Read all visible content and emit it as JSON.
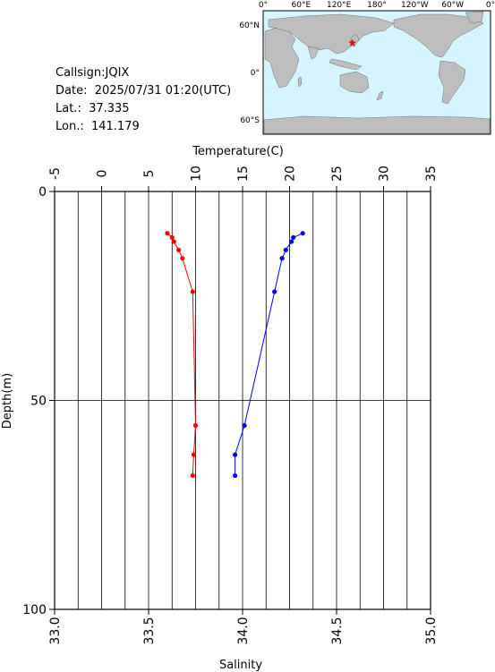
{
  "info": {
    "callsign": "Callsign:JQIX",
    "date": "Date:  2025/07/31 01:20(UTC)",
    "lat": "Lat.:  37.335",
    "lon": "Lon.:  141.179"
  },
  "map": {
    "top_lon_labels": [
      "0°",
      "60°E",
      "120°E",
      "180°",
      "120°W",
      "60°W",
      "0°"
    ],
    "left_lat_labels": [
      "60°N",
      "0°",
      "60°S"
    ],
    "ocean_color": "#d4f4ff",
    "land_color": "#bebebe",
    "marker_color": "#ff0000",
    "marker_lat": 37.335,
    "marker_lon": 141.179
  },
  "chart_data": {
    "type": "line",
    "title": "",
    "ylabel": "Depth(m)",
    "ylim": [
      0,
      100
    ],
    "y_inverted": true,
    "y_ticks": [
      0,
      50,
      100
    ],
    "x_top": {
      "label": "Temperature(C)",
      "lim": [
        -5,
        35
      ],
      "ticks": [
        -5,
        0,
        5,
        10,
        15,
        20,
        25,
        30,
        35
      ]
    },
    "x_bottom": {
      "label": "Salinity",
      "lim": [
        33.0,
        35.0
      ],
      "ticks": [
        "33.0",
        "33.5",
        "34.0",
        "34.5",
        "35.0"
      ]
    },
    "grid": true,
    "series": [
      {
        "axis": "temperature",
        "color": "#ff0000",
        "points": [
          {
            "x": 7.0,
            "y": 10
          },
          {
            "x": 7.5,
            "y": 11
          },
          {
            "x": 7.7,
            "y": 12
          },
          {
            "x": 8.2,
            "y": 14
          },
          {
            "x": 8.6,
            "y": 16
          },
          {
            "x": 9.7,
            "y": 24
          },
          {
            "x": 10.0,
            "y": 56
          },
          {
            "x": 9.8,
            "y": 63
          },
          {
            "x": 9.7,
            "y": 68
          }
        ]
      },
      {
        "axis": "salinity",
        "color": "#0000ff",
        "points": [
          {
            "x": 34.32,
            "y": 10
          },
          {
            "x": 34.27,
            "y": 11
          },
          {
            "x": 34.26,
            "y": 12
          },
          {
            "x": 34.23,
            "y": 14
          },
          {
            "x": 34.21,
            "y": 16
          },
          {
            "x": 34.17,
            "y": 24
          },
          {
            "x": 34.01,
            "y": 56
          },
          {
            "x": 33.96,
            "y": 63
          },
          {
            "x": 33.96,
            "y": 68
          }
        ]
      }
    ]
  }
}
